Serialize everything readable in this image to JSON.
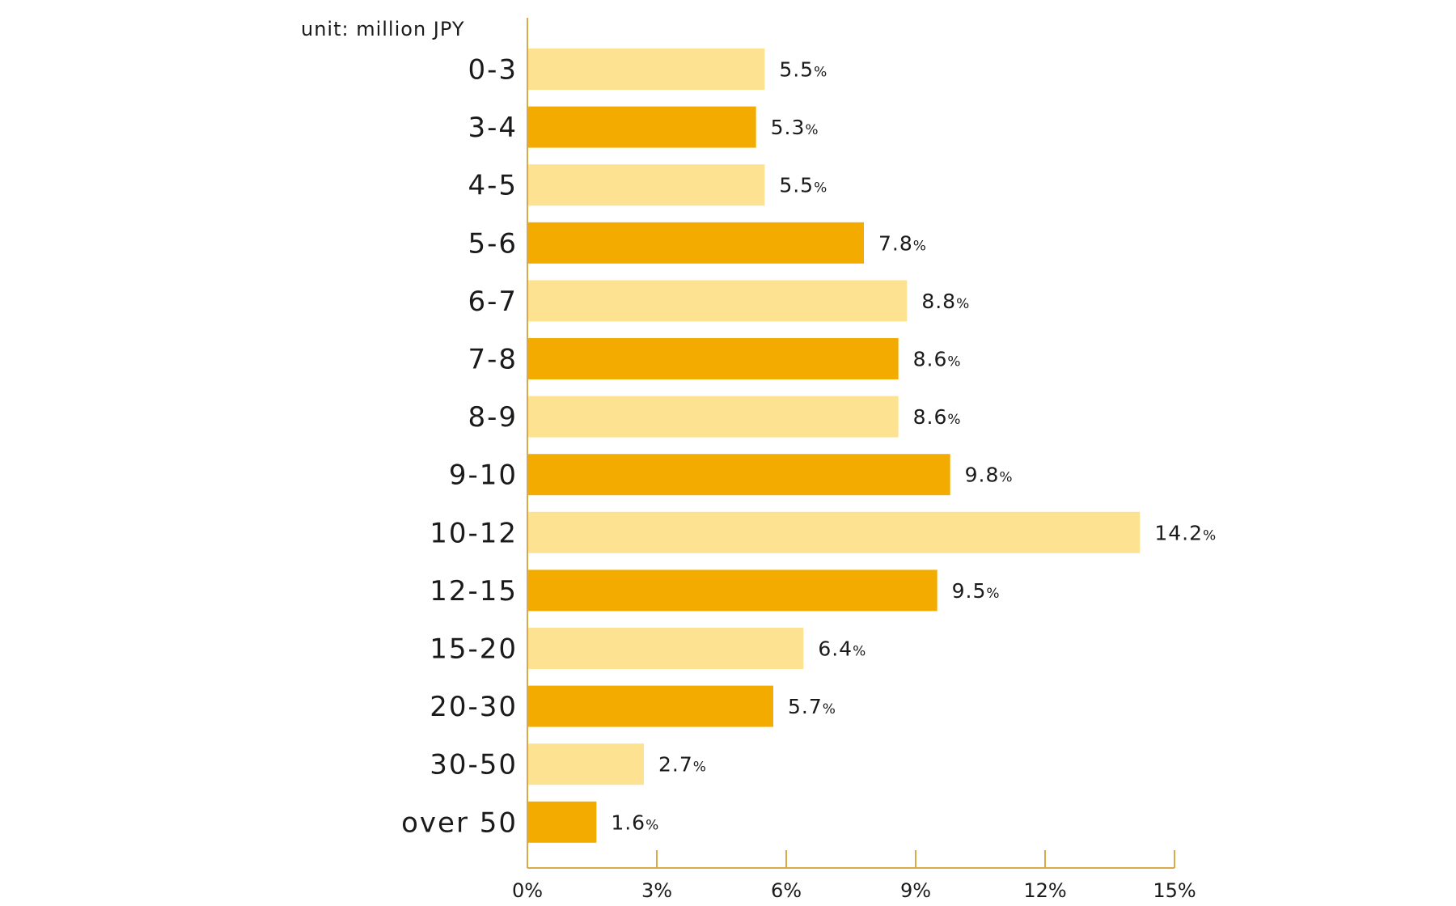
{
  "chart_data": {
    "type": "bar",
    "orientation": "horizontal",
    "unit_note": "unit: million JPY",
    "categories": [
      "0-3",
      "3-4",
      "4-5",
      "5-6",
      "6-7",
      "7-8",
      "8-9",
      "9-10",
      "10-12",
      "12-15",
      "15-20",
      "20-30",
      "30-50",
      "over 50"
    ],
    "values": [
      5.5,
      5.3,
      5.5,
      7.8,
      8.8,
      8.6,
      8.6,
      9.8,
      14.2,
      9.5,
      6.4,
      5.7,
      2.7,
      1.6
    ],
    "value_labels": [
      "5.5",
      "5.3",
      "5.5",
      "7.8",
      "8.8",
      "8.6",
      "8.6",
      "9.8",
      "14.2",
      "9.5",
      "6.4",
      "5.7",
      "2.7",
      "1.6"
    ],
    "value_suffix": "%",
    "xlim": [
      0,
      15
    ],
    "x_ticks": [
      0,
      3,
      6,
      9,
      12,
      15
    ],
    "x_tick_labels": [
      "0%",
      "3%",
      "6%",
      "9%",
      "12%",
      "15%"
    ],
    "title": "",
    "xlabel": "",
    "ylabel": "",
    "grid": false,
    "colors": {
      "bar_light": "#FDE291",
      "bar_dark": "#F4AB00",
      "axis": "#D9A94A",
      "text": "#1a1a1a"
    }
  }
}
